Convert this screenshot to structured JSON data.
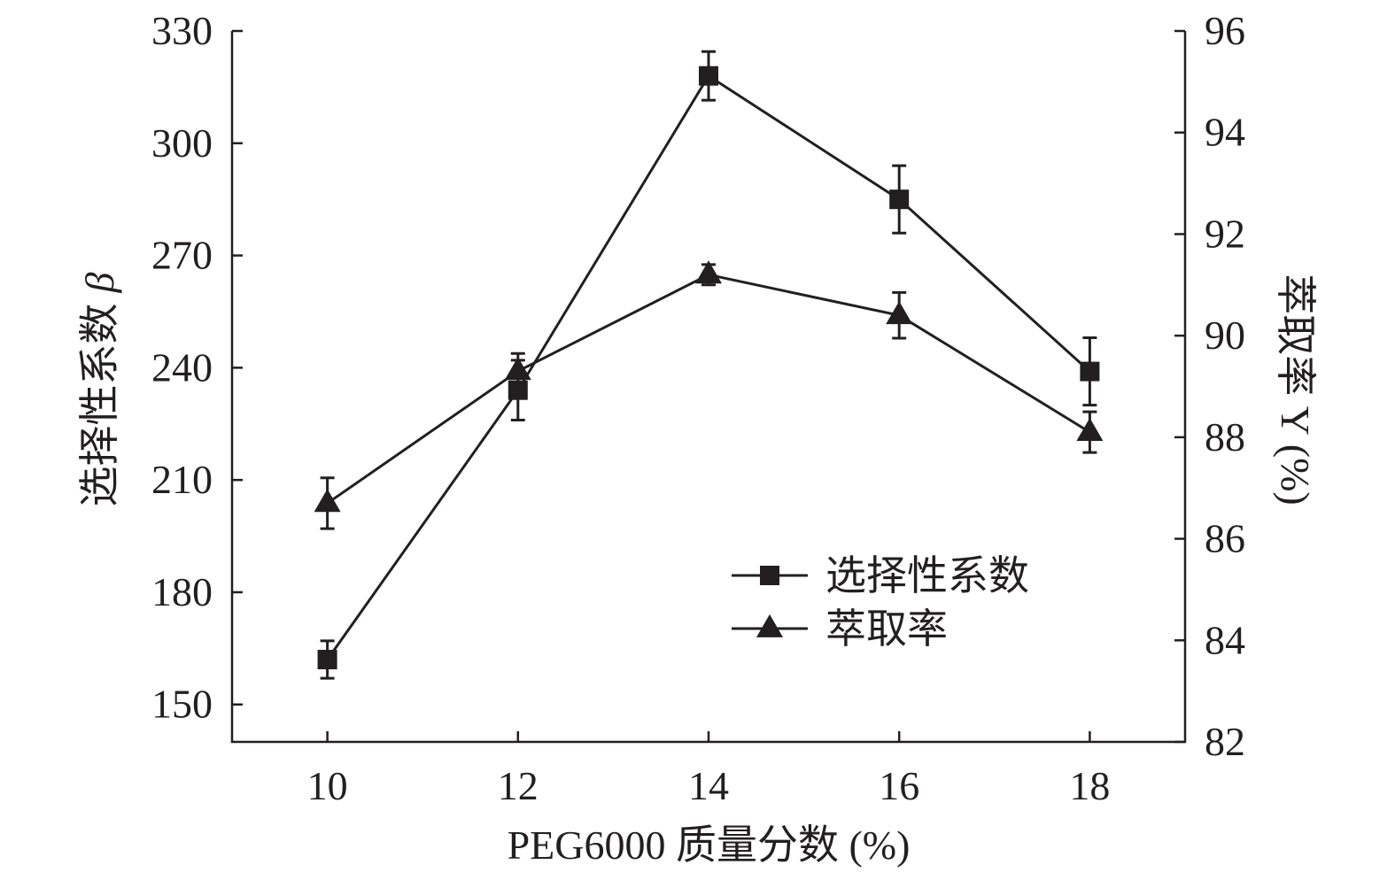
{
  "chart_data": {
    "type": "line",
    "xlabel": "PEG6000 质量分数 (%)",
    "ylabel_left": "选择性系数",
    "ylabel_left_symbol": "β",
    "ylabel_right": "萃取率 Y (%)",
    "x": [
      10,
      12,
      14,
      16,
      18
    ],
    "xlim": [
      9,
      19
    ],
    "xticks": [
      10,
      12,
      14,
      16,
      18
    ],
    "ylim_left": [
      140,
      330
    ],
    "yticks_left": [
      150,
      180,
      210,
      240,
      270,
      300,
      330
    ],
    "ylim_right": [
      82,
      96
    ],
    "yticks_right": [
      82,
      84,
      86,
      88,
      90,
      92,
      94,
      96
    ],
    "legend_position": "lower-right",
    "grid": false,
    "series": [
      {
        "name": "选择性系数",
        "axis": "left",
        "marker": "square",
        "values": [
          162,
          234,
          318,
          285,
          239
        ],
        "errors": [
          5,
          8,
          6.5,
          9,
          9
        ]
      },
      {
        "name": "萃取率",
        "axis": "right",
        "marker": "triangle",
        "values": [
          86.7,
          89.3,
          91.2,
          90.4,
          88.1
        ],
        "errors": [
          0.5,
          0.35,
          0.2,
          0.45,
          0.4
        ]
      }
    ]
  }
}
